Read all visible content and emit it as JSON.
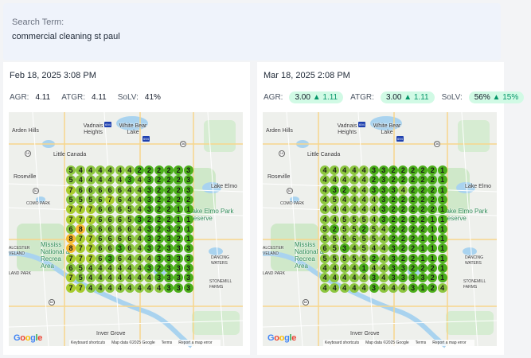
{
  "search": {
    "label": "Search Term:",
    "value": "commercial cleaning st paul"
  },
  "panels": [
    {
      "date": "Feb 18, 2025 3:08 PM",
      "metrics": {
        "agr_label": "AGR:",
        "agr": "4.11",
        "atgr_label": "ATGR:",
        "atgr": "4.11",
        "solv_label": "SoLV:",
        "solv": "41%"
      },
      "grid": [
        "5444444222223",
        "5444443432223",
        "7666664432223",
        "5556764432222",
        "7776665432211",
        "7776665322211",
        "6866666432321",
        "8776666432321",
        "8776636432333",
        "7776364443333",
        "6544444432333",
        "7544444443333",
        "7744444444333"
      ]
    },
    {
      "date": "Mar 18, 2025 2:08 PM",
      "metrics": {
        "agr_label": "AGR:",
        "agr": "3.00",
        "agr_delta": "▲ 1.11",
        "atgr_label": "ATGR:",
        "atgr": "3.00",
        "atgr_delta": "▲ 1.11",
        "solv_label": "SoLV:",
        "solv": "56%",
        "solv_delta": "▲ 15%"
      },
      "grid": [
        "4444433222221",
        "4444423222221",
        "4324433342221",
        "4544443222221",
        "4444443222221",
        "4455543222211",
        "5255254222211",
        "5556554222111",
        "6534544322111",
        "5555524322111",
        "4444144332221",
        "4444434333321",
        "4444434443124"
      ]
    }
  ],
  "map": {
    "places": [
      "Arden Hills",
      "Vadnais Heights",
      "White Bear Lake",
      "Little Canada",
      "Roseville",
      "COMO PARK",
      "Lake Elmo Park Reserve",
      "Lake Elmo",
      "Mississ National & Recrea Area",
      "ALCESTER VELAND",
      "LAND PARK",
      "DANCING WATERS",
      "STONEMILL FARMS",
      "Inver Grove"
    ],
    "footer": [
      "Keyboard shortcuts",
      "Map data ©2025 Google",
      "Terms",
      "Report a map error"
    ],
    "logo": "Google"
  },
  "colors": {
    "rank_1_3": "#4caf1a",
    "rank_4_6": "#8cc63f",
    "rank_7": "#a8cc2e",
    "rank_8": "#f5b82e",
    "pill_bg": "#d1fae5",
    "delta": "#059669"
  }
}
